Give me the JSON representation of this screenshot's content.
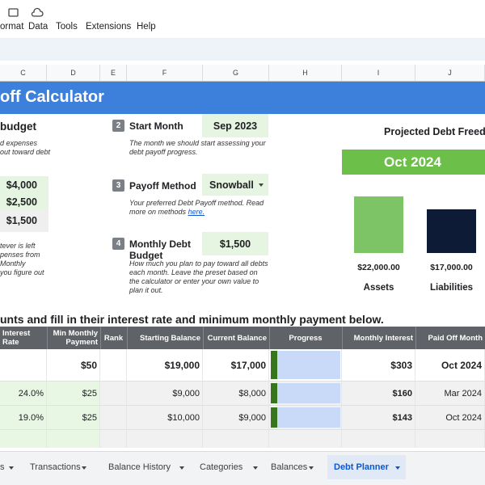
{
  "menu": [
    "ormat",
    "Data",
    "Tools",
    "Extensions",
    "Help"
  ],
  "columns": [
    "C",
    "D",
    "E",
    "F",
    "G",
    "H",
    "I",
    "J"
  ],
  "banner": {
    "title": "off Calculator"
  },
  "budget": {
    "heading": "budget",
    "note_top": [
      "d expenses",
      "out toward debt"
    ],
    "values": [
      "$4,000",
      "$2,500",
      "$1,500"
    ],
    "note_bottom": [
      "tever is left",
      "penses from",
      "Monthly",
      "you figure out"
    ]
  },
  "steps": [
    {
      "number": "2",
      "title": "Start Month",
      "value": "Sep 2023",
      "description": "The month we should start assessing your debt payoff progress."
    },
    {
      "number": "3",
      "title": "Payoff Method",
      "value": "Snowball",
      "description": "Your preferred Debt Payoff method. Read more on methods",
      "link": "here."
    },
    {
      "number": "4",
      "title": "Monthly Debt Budget",
      "value": "$1,500",
      "description": "How much you plan to pay toward all debts each month. Leave the preset based on the calculator or enter your own value to plan it out."
    }
  ],
  "freedom": {
    "title": "Projected Debt Freedom",
    "date": "Oct 2024"
  },
  "bars": [
    {
      "name": "Assets",
      "value": 22000,
      "value_label": "$22,000.00",
      "color": "#7cc466"
    },
    {
      "name": "Liabilities",
      "value": 17000,
      "value_label": "$17,000.00",
      "color": "#0d1b36"
    }
  ],
  "section": {
    "heading": "unts and fill in their interest rate and minimum monthly payment below."
  },
  "table": {
    "headers": [
      "Interest Rate",
      "Min Monthly Payment",
      "Rank",
      "Starting Balance",
      "Current Balance",
      "Progress",
      "Monthly Interest",
      "Paid Off Month"
    ],
    "rows": [
      [
        null,
        "$50",
        null,
        "$19,000",
        "$17,000",
        null,
        "$303",
        "Oct 2024"
      ],
      [
        "24.0%",
        "$25",
        null,
        "$9,000",
        "$8,000",
        null,
        "$160",
        "Mar 2024"
      ],
      [
        "19.0%",
        "$25",
        null,
        "$10,000",
        "$9,000",
        null,
        "$143",
        "Oct 2024"
      ]
    ]
  },
  "tabs": [
    "s",
    "Transactions",
    "Balance History",
    "Categories",
    "Balances",
    "Debt Planner"
  ]
}
